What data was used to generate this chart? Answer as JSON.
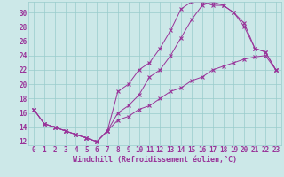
{
  "xlabel": "Windchill (Refroidissement éolien,°C)",
  "bg_color": "#cce8e8",
  "line_color": "#993399",
  "marker": "x",
  "xlim": [
    -0.5,
    23.5
  ],
  "ylim": [
    11.5,
    31.5
  ],
  "xticks": [
    0,
    1,
    2,
    3,
    4,
    5,
    6,
    7,
    8,
    9,
    10,
    11,
    12,
    13,
    14,
    15,
    16,
    17,
    18,
    19,
    20,
    21,
    22,
    23
  ],
  "yticks": [
    12,
    14,
    16,
    18,
    20,
    22,
    24,
    26,
    28,
    30
  ],
  "line1_x": [
    0,
    1,
    2,
    3,
    4,
    5,
    6,
    7,
    8,
    9,
    10,
    11,
    12,
    13,
    14,
    15,
    16,
    17,
    18,
    19,
    20,
    21,
    22,
    23
  ],
  "line1_y": [
    16.5,
    14.5,
    14.0,
    13.5,
    13.0,
    12.5,
    12.0,
    13.5,
    16.0,
    17.0,
    18.5,
    21.0,
    22.0,
    24.0,
    26.5,
    29.0,
    31.0,
    31.5,
    31.0,
    30.0,
    28.0,
    25.0,
    24.5,
    22.0
  ],
  "line2_x": [
    0,
    1,
    2,
    3,
    4,
    5,
    6,
    7,
    8,
    9,
    10,
    11,
    12,
    13,
    14,
    15,
    16,
    17,
    18,
    19,
    20,
    21,
    22,
    23
  ],
  "line2_y": [
    16.5,
    14.5,
    14.0,
    13.5,
    13.0,
    12.5,
    12.0,
    13.5,
    19.0,
    20.0,
    22.0,
    23.0,
    25.0,
    27.5,
    30.5,
    31.5,
    31.5,
    31.0,
    31.0,
    30.0,
    28.5,
    25.0,
    24.5,
    22.0
  ],
  "line3_x": [
    0,
    1,
    2,
    3,
    4,
    5,
    6,
    7,
    8,
    9,
    10,
    11,
    12,
    13,
    14,
    15,
    16,
    17,
    18,
    19,
    20,
    21,
    22,
    23
  ],
  "line3_y": [
    16.5,
    14.5,
    14.0,
    13.5,
    13.0,
    12.5,
    12.0,
    13.5,
    15.0,
    15.5,
    16.5,
    17.0,
    18.0,
    19.0,
    19.5,
    20.5,
    21.0,
    22.0,
    22.5,
    23.0,
    23.5,
    23.8,
    24.0,
    22.0
  ],
  "grid_color": "#99cccc",
  "tick_label_color": "#993399",
  "tick_label_fontsize": 5.5,
  "xlabel_fontsize": 6.0,
  "xlabel_color": "#993399",
  "marker_size": 2.5,
  "line_width": 0.7
}
